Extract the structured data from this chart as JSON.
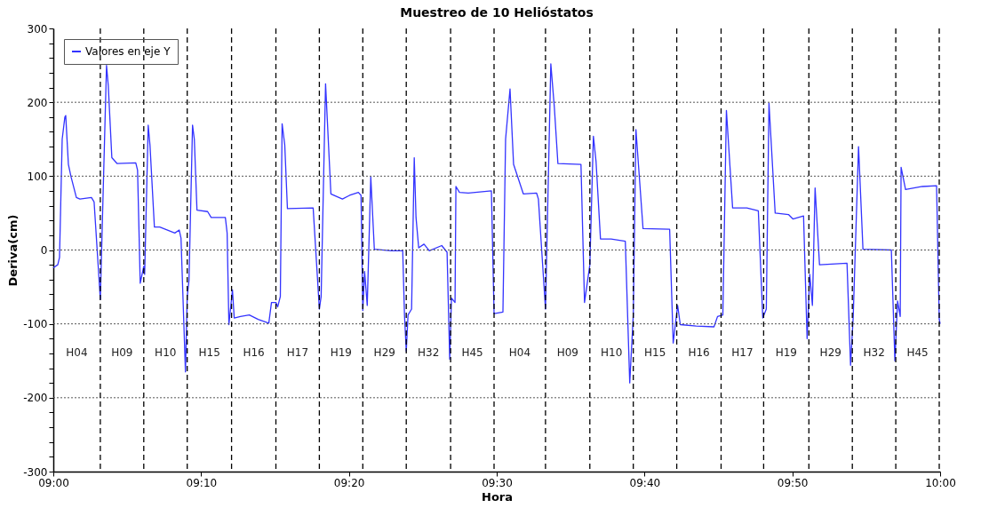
{
  "chart_data": {
    "type": "line",
    "title": "Muestreo de 10 Helióstatos",
    "xlabel": "Hora",
    "ylabel": "Deriva(cm)",
    "xlim": [
      9,
      10
    ],
    "xticks": [
      {
        "value": 9,
        "label": "09:00"
      },
      {
        "value": 9.1667,
        "label": "09:10"
      },
      {
        "value": 9.3333,
        "label": "09:20"
      },
      {
        "value": 9.5,
        "label": "09:30"
      },
      {
        "value": 9.6667,
        "label": "09:40"
      },
      {
        "value": 9.8333,
        "label": "09:50"
      },
      {
        "value": 10,
        "label": "10:00"
      }
    ],
    "ylim": [
      -300,
      300
    ],
    "yticks": [
      -300,
      {
        "value": -280,
        "label": null
      },
      {
        "value": -260,
        "label": null
      },
      {
        "value": -240,
        "label": null
      },
      {
        "value": -220,
        "label": null
      },
      -200,
      {
        "value": -180,
        "label": null
      },
      {
        "value": -160,
        "label": null
      },
      {
        "value": -140,
        "label": null
      },
      {
        "value": -120,
        "label": null
      },
      -100,
      {
        "value": -80,
        "label": null
      },
      {
        "value": -60,
        "label": null
      },
      {
        "value": -40,
        "label": null
      },
      {
        "value": -20,
        "label": null
      },
      0,
      {
        "value": 20,
        "label": null
      },
      {
        "value": 40,
        "label": null
      },
      {
        "value": 60,
        "label": null
      },
      {
        "value": 80,
        "label": null
      },
      100,
      {
        "value": 120,
        "label": null
      },
      {
        "value": 140,
        "label": null
      },
      {
        "value": 160,
        "label": null
      },
      {
        "value": 180,
        "label": null
      },
      200,
      {
        "value": 220,
        "label": null
      },
      {
        "value": 240,
        "label": null
      },
      {
        "value": 260,
        "label": null
      },
      {
        "value": 280,
        "label": null
      },
      300
    ],
    "grid": "y",
    "legend": "top left",
    "line_style": "solid",
    "series": [
      {
        "name": "Valores en eje Y",
        "color": "#3333ff",
        "x": [
          9.0,
          9.005,
          9.007,
          9.01,
          9.013,
          9.014,
          9.017,
          9.02,
          9.026,
          9.03,
          9.043,
          9.046,
          9.053,
          9.06,
          9.062,
          9.066,
          9.072,
          9.093,
          9.095,
          9.098,
          9.102,
          9.103,
          9.107,
          9.109,
          9.114,
          9.12,
          9.137,
          9.142,
          9.144,
          9.149,
          9.151,
          9.153,
          9.157,
          9.159,
          9.162,
          9.174,
          9.178,
          9.194,
          9.196,
          9.198,
          9.202,
          9.204,
          9.211,
          9.221,
          9.231,
          9.243,
          9.246,
          9.251,
          9.253,
          9.256,
          9.258,
          9.261,
          9.264,
          9.293,
          9.3,
          9.302,
          9.307,
          9.313,
          9.326,
          9.334,
          9.344,
          9.347,
          9.349,
          9.351,
          9.354,
          9.358,
          9.362,
          9.381,
          9.394,
          9.396,
          9.398,
          9.4,
          9.404,
          9.407,
          9.409,
          9.412,
          9.418,
          9.424,
          9.438,
          9.444,
          9.447,
          9.449,
          9.453,
          9.454,
          9.458,
          9.468,
          9.494,
          9.497,
          9.507,
          9.51,
          9.515,
          9.519,
          9.53,
          9.545,
          9.547,
          9.555,
          9.561,
          9.565,
          9.569,
          9.595,
          9.599,
          9.605,
          9.609,
          9.612,
          9.617,
          9.629,
          9.645,
          9.65,
          9.654,
          9.657,
          9.665,
          9.695,
          9.699,
          9.704,
          9.707,
          9.725,
          9.745,
          9.749,
          9.755,
          9.759,
          9.766,
          9.782,
          9.795,
          9.8,
          9.804,
          9.807,
          9.814,
          9.829,
          9.834,
          9.846,
          9.85,
          9.853,
          9.856,
          9.859,
          9.864,
          9.895,
          9.899,
          9.902,
          9.908,
          9.913,
          9.945,
          9.949,
          9.952,
          9.955,
          9.956,
          9.961,
          9.98,
          9.996,
          9.999,
          10.0
        ],
        "values": [
          -24,
          -20,
          -10,
          150,
          180,
          182,
          116,
          99,
          71,
          69,
          71,
          65,
          -67,
          250,
          222,
          125,
          117,
          118,
          108,
          -45,
          -22,
          -33,
          169,
          142,
          31,
          31,
          23,
          27,
          16,
          -165,
          -63,
          -41,
          169,
          150,
          54,
          52,
          44,
          44,
          23,
          -101,
          -54,
          -92,
          -90,
          -88,
          -94,
          -99,
          -71,
          -71,
          -77,
          -63,
          171,
          142,
          56,
          57,
          -80,
          -63,
          225,
          76,
          69,
          74,
          78,
          74,
          -82,
          -29,
          -75,
          99,
          1,
          -1,
          -1,
          -88,
          -137,
          -88,
          -80,
          125,
          44,
          3,
          8,
          -1,
          6,
          -3,
          -148,
          -65,
          -71,
          86,
          78,
          77,
          80,
          -86,
          -84,
          150,
          218,
          116,
          76,
          77,
          69,
          -80,
          252,
          193,
          117,
          116,
          -71,
          -20,
          154,
          120,
          15,
          15,
          12,
          -180,
          -88,
          163,
          29,
          28,
          -126,
          -75,
          -101,
          -103,
          -104,
          -90,
          -88,
          189,
          57,
          57,
          53,
          -92,
          -80,
          199,
          50,
          48,
          42,
          46,
          -120,
          -33,
          -75,
          84,
          -20,
          -18,
          -156,
          -90,
          140,
          1,
          0,
          -150,
          -69,
          -90,
          112,
          82,
          86,
          87,
          -94,
          -100
        ]
      }
    ],
    "ref_lines": [
      {
        "axis": "x",
        "value": 9.053,
        "color": "#000000",
        "line_style": "dashed"
      },
      {
        "axis": "x",
        "value": 9.102,
        "color": "#000000",
        "line_style": "dashed"
      },
      {
        "axis": "x",
        "value": 9.151,
        "color": "#000000",
        "line_style": "dashed"
      },
      {
        "axis": "x",
        "value": 9.201,
        "color": "#000000",
        "line_style": "dashed"
      },
      {
        "axis": "x",
        "value": 9.251,
        "color": "#000000",
        "line_style": "dashed"
      },
      {
        "axis": "x",
        "value": 9.3,
        "color": "#000000",
        "line_style": "dashed"
      },
      {
        "axis": "x",
        "value": 9.349,
        "color": "#000000",
        "line_style": "dashed"
      },
      {
        "axis": "x",
        "value": 9.398,
        "color": "#000000",
        "line_style": "dashed"
      },
      {
        "axis": "x",
        "value": 9.448,
        "color": "#000000",
        "line_style": "dashed"
      },
      {
        "axis": "x",
        "value": 9.497,
        "color": "#000000",
        "line_style": "dashed"
      },
      {
        "axis": "x",
        "value": 9.555,
        "color": "#000000",
        "line_style": "dashed"
      },
      {
        "axis": "x",
        "value": 9.605,
        "color": "#000000",
        "line_style": "dashed"
      },
      {
        "axis": "x",
        "value": 9.654,
        "color": "#000000",
        "line_style": "dashed"
      },
      {
        "axis": "x",
        "value": 9.703,
        "color": "#000000",
        "line_style": "dashed"
      },
      {
        "axis": "x",
        "value": 9.753,
        "color": "#000000",
        "line_style": "dashed"
      },
      {
        "axis": "x",
        "value": 9.801,
        "color": "#000000",
        "line_style": "dashed"
      },
      {
        "axis": "x",
        "value": 9.852,
        "color": "#000000",
        "line_style": "dashed"
      },
      {
        "axis": "x",
        "value": 9.901,
        "color": "#000000",
        "line_style": "dashed"
      },
      {
        "axis": "x",
        "value": 9.95,
        "color": "#000000",
        "line_style": "dashed"
      },
      {
        "axis": "x",
        "value": 9.999,
        "color": "#000000",
        "line_style": "dashed"
      }
    ],
    "annotations": [
      "H04",
      "H09",
      "H10",
      "H15",
      "H16",
      "H17",
      "H19",
      "H29",
      "H32",
      "H45",
      "H04",
      "H09",
      "H10",
      "H15",
      "H16",
      "H17",
      "H19",
      "H29",
      "H32",
      "H45"
    ]
  }
}
